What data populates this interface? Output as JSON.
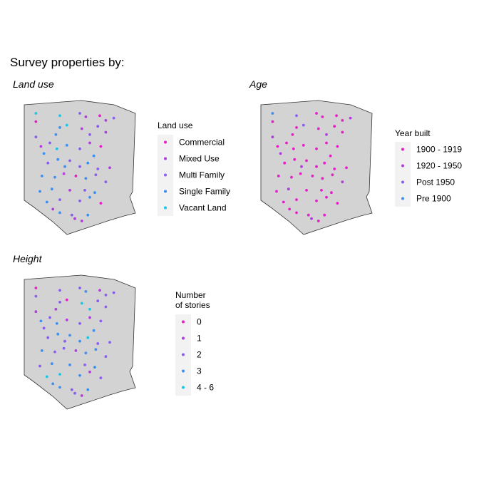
{
  "title": "Survey properties by:",
  "panels": [
    {
      "id": "land-use",
      "title": "Land use",
      "legend_title_lines": [
        "Land use"
      ],
      "categories": [
        {
          "label": "Commercial",
          "color": "#e61ec8"
        },
        {
          "label": "Mixed Use",
          "color": "#b13ce0"
        },
        {
          "label": "Multi Family",
          "color": "#8a5cf2"
        },
        {
          "label": "Single Family",
          "color": "#3d8ff2"
        },
        {
          "label": "Vacant Land",
          "color": "#14c8e6"
        }
      ],
      "points": [
        [
          0.06,
          0.06,
          4
        ],
        [
          0.06,
          0.13,
          0
        ],
        [
          0.3,
          0.08,
          4
        ],
        [
          0.5,
          0.06,
          2
        ],
        [
          0.56,
          0.09,
          1
        ],
        [
          0.7,
          0.08,
          0
        ],
        [
          0.76,
          0.12,
          1
        ],
        [
          0.84,
          0.1,
          2
        ],
        [
          0.06,
          0.26,
          2
        ],
        [
          0.3,
          0.18,
          3
        ],
        [
          0.37,
          0.16,
          4
        ],
        [
          0.52,
          0.19,
          1
        ],
        [
          0.6,
          0.24,
          2
        ],
        [
          0.68,
          0.17,
          2
        ],
        [
          0.76,
          0.22,
          1
        ],
        [
          0.2,
          0.31,
          2
        ],
        [
          0.27,
          0.36,
          4
        ],
        [
          0.37,
          0.33,
          3
        ],
        [
          0.5,
          0.36,
          2
        ],
        [
          0.6,
          0.31,
          1
        ],
        [
          0.71,
          0.34,
          0
        ],
        [
          0.18,
          0.48,
          2
        ],
        [
          0.28,
          0.45,
          3
        ],
        [
          0.4,
          0.46,
          2
        ],
        [
          0.5,
          0.51,
          2
        ],
        [
          0.58,
          0.48,
          3
        ],
        [
          0.68,
          0.53,
          2
        ],
        [
          0.8,
          0.52,
          1
        ],
        [
          0.12,
          0.59,
          3
        ],
        [
          0.25,
          0.6,
          3
        ],
        [
          0.34,
          0.57,
          1
        ],
        [
          0.46,
          0.59,
          0
        ],
        [
          0.56,
          0.61,
          3
        ],
        [
          0.66,
          0.58,
          2
        ],
        [
          0.1,
          0.72,
          3
        ],
        [
          0.22,
          0.7,
          3
        ],
        [
          0.4,
          0.71,
          1
        ],
        [
          0.55,
          0.71,
          2
        ],
        [
          0.65,
          0.73,
          3
        ],
        [
          0.17,
          0.81,
          3
        ],
        [
          0.3,
          0.79,
          2
        ],
        [
          0.5,
          0.8,
          2
        ],
        [
          0.6,
          0.77,
          3
        ],
        [
          0.71,
          0.82,
          0
        ],
        [
          0.23,
          0.87,
          1
        ],
        [
          0.3,
          0.9,
          3
        ],
        [
          0.42,
          0.92,
          2
        ],
        [
          0.45,
          0.95,
          1
        ],
        [
          0.52,
          0.97,
          1
        ],
        [
          0.58,
          0.92,
          3
        ],
        [
          0.14,
          0.4,
          3
        ],
        [
          0.26,
          0.24,
          3
        ],
        [
          0.64,
          0.42,
          3
        ],
        [
          0.35,
          0.51,
          3
        ],
        [
          0.76,
          0.64,
          2
        ],
        [
          0.11,
          0.34,
          1
        ]
      ]
    },
    {
      "id": "age",
      "title": "Age",
      "legend_title_lines": [
        "Year built"
      ],
      "categories": [
        {
          "label": "1900 - 1919",
          "color": "#e61ec8"
        },
        {
          "label": "1920 - 1950",
          "color": "#b13ce0"
        },
        {
          "label": "Post 1950",
          "color": "#8a5cf2"
        },
        {
          "label": "Pre 1900",
          "color": "#3d8ff2"
        }
      ],
      "points": [
        [
          0.06,
          0.06,
          3
        ],
        [
          0.06,
          0.13,
          0
        ],
        [
          0.3,
          0.08,
          2
        ],
        [
          0.5,
          0.06,
          0
        ],
        [
          0.56,
          0.09,
          0
        ],
        [
          0.7,
          0.08,
          0
        ],
        [
          0.76,
          0.12,
          0
        ],
        [
          0.84,
          0.1,
          1
        ],
        [
          0.06,
          0.26,
          1
        ],
        [
          0.3,
          0.18,
          0
        ],
        [
          0.37,
          0.16,
          2
        ],
        [
          0.52,
          0.19,
          0
        ],
        [
          0.6,
          0.24,
          1
        ],
        [
          0.68,
          0.17,
          0
        ],
        [
          0.76,
          0.22,
          0
        ],
        [
          0.2,
          0.31,
          0
        ],
        [
          0.27,
          0.36,
          0
        ],
        [
          0.37,
          0.33,
          0
        ],
        [
          0.5,
          0.36,
          0
        ],
        [
          0.6,
          0.31,
          0
        ],
        [
          0.71,
          0.34,
          0
        ],
        [
          0.18,
          0.48,
          0
        ],
        [
          0.28,
          0.45,
          0
        ],
        [
          0.4,
          0.46,
          0
        ],
        [
          0.5,
          0.51,
          0
        ],
        [
          0.58,
          0.48,
          0
        ],
        [
          0.68,
          0.53,
          0
        ],
        [
          0.8,
          0.52,
          0
        ],
        [
          0.12,
          0.59,
          0
        ],
        [
          0.25,
          0.6,
          0
        ],
        [
          0.34,
          0.57,
          0
        ],
        [
          0.46,
          0.59,
          0
        ],
        [
          0.56,
          0.61,
          0
        ],
        [
          0.66,
          0.58,
          0
        ],
        [
          0.1,
          0.72,
          0
        ],
        [
          0.22,
          0.7,
          1
        ],
        [
          0.4,
          0.71,
          0
        ],
        [
          0.55,
          0.71,
          0
        ],
        [
          0.65,
          0.73,
          0
        ],
        [
          0.17,
          0.81,
          0
        ],
        [
          0.3,
          0.79,
          0
        ],
        [
          0.5,
          0.8,
          0
        ],
        [
          0.6,
          0.77,
          0
        ],
        [
          0.71,
          0.82,
          0
        ],
        [
          0.23,
          0.87,
          0
        ],
        [
          0.3,
          0.9,
          0
        ],
        [
          0.42,
          0.92,
          0
        ],
        [
          0.45,
          0.95,
          1
        ],
        [
          0.52,
          0.97,
          0
        ],
        [
          0.58,
          0.92,
          0
        ],
        [
          0.14,
          0.4,
          1
        ],
        [
          0.26,
          0.24,
          0
        ],
        [
          0.64,
          0.42,
          0
        ],
        [
          0.35,
          0.51,
          1
        ],
        [
          0.76,
          0.64,
          1
        ],
        [
          0.11,
          0.34,
          0
        ]
      ]
    },
    {
      "id": "height",
      "title": "Height",
      "legend_title_lines": [
        "Number",
        "of stories"
      ],
      "categories": [
        {
          "label": "0",
          "color": "#e61ec8"
        },
        {
          "label": "1",
          "color": "#b13ce0"
        },
        {
          "label": "2",
          "color": "#8a5cf2"
        },
        {
          "label": "3",
          "color": "#3d8ff2"
        },
        {
          "label": "4 - 6",
          "color": "#14c8e6"
        }
      ],
      "points": [
        [
          0.06,
          0.06,
          0
        ],
        [
          0.06,
          0.13,
          2
        ],
        [
          0.3,
          0.08,
          2
        ],
        [
          0.5,
          0.06,
          2
        ],
        [
          0.56,
          0.09,
          3
        ],
        [
          0.7,
          0.08,
          1
        ],
        [
          0.76,
          0.12,
          2
        ],
        [
          0.84,
          0.1,
          2
        ],
        [
          0.06,
          0.26,
          1
        ],
        [
          0.3,
          0.18,
          2
        ],
        [
          0.37,
          0.16,
          0
        ],
        [
          0.52,
          0.19,
          4
        ],
        [
          0.6,
          0.24,
          4
        ],
        [
          0.68,
          0.17,
          2
        ],
        [
          0.76,
          0.22,
          2
        ],
        [
          0.2,
          0.31,
          2
        ],
        [
          0.27,
          0.36,
          3
        ],
        [
          0.37,
          0.33,
          1
        ],
        [
          0.5,
          0.36,
          2
        ],
        [
          0.6,
          0.31,
          1
        ],
        [
          0.71,
          0.34,
          2
        ],
        [
          0.18,
          0.48,
          2
        ],
        [
          0.28,
          0.45,
          3
        ],
        [
          0.4,
          0.46,
          3
        ],
        [
          0.5,
          0.51,
          3
        ],
        [
          0.58,
          0.48,
          4
        ],
        [
          0.68,
          0.53,
          2
        ],
        [
          0.8,
          0.52,
          2
        ],
        [
          0.12,
          0.59,
          3
        ],
        [
          0.25,
          0.6,
          2
        ],
        [
          0.34,
          0.57,
          2
        ],
        [
          0.46,
          0.59,
          1
        ],
        [
          0.56,
          0.61,
          3
        ],
        [
          0.66,
          0.58,
          3
        ],
        [
          0.1,
          0.72,
          2
        ],
        [
          0.22,
          0.7,
          3
        ],
        [
          0.4,
          0.71,
          3
        ],
        [
          0.55,
          0.71,
          2
        ],
        [
          0.65,
          0.73,
          3
        ],
        [
          0.17,
          0.81,
          4
        ],
        [
          0.3,
          0.79,
          4
        ],
        [
          0.5,
          0.8,
          3
        ],
        [
          0.6,
          0.77,
          1
        ],
        [
          0.71,
          0.82,
          2
        ],
        [
          0.23,
          0.87,
          3
        ],
        [
          0.3,
          0.9,
          3
        ],
        [
          0.42,
          0.92,
          2
        ],
        [
          0.45,
          0.95,
          2
        ],
        [
          0.52,
          0.97,
          1
        ],
        [
          0.58,
          0.92,
          3
        ],
        [
          0.14,
          0.4,
          2
        ],
        [
          0.26,
          0.24,
          1
        ],
        [
          0.64,
          0.42,
          3
        ],
        [
          0.35,
          0.51,
          2
        ],
        [
          0.76,
          0.64,
          2
        ],
        [
          0.11,
          0.34,
          3
        ]
      ]
    }
  ]
}
